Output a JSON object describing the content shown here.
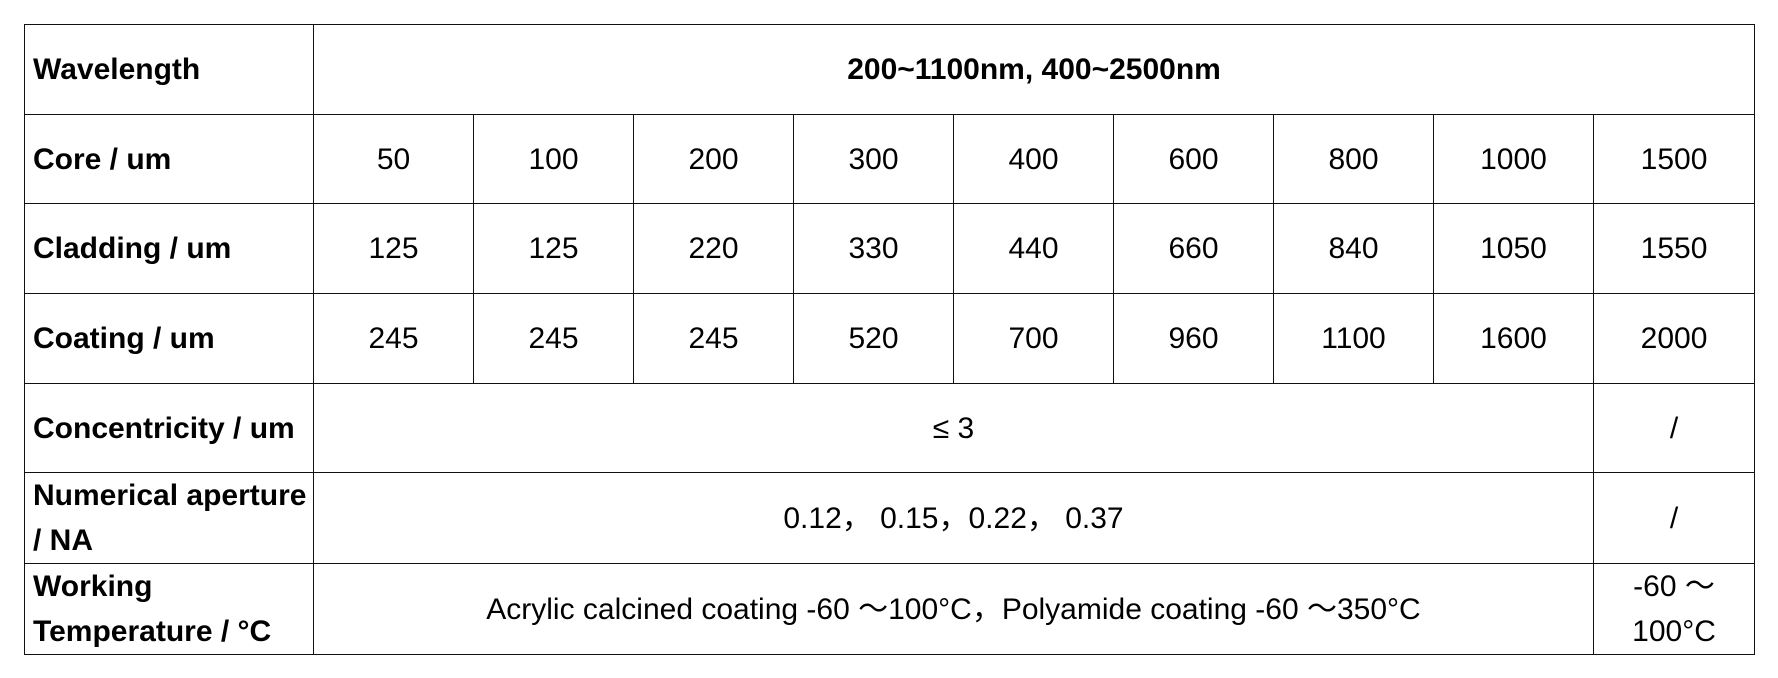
{
  "table": {
    "wavelength": {
      "label": "Wavelength",
      "value": "200~1100nm, 400~2500nm"
    },
    "core": {
      "label": "Core / um",
      "values": [
        "50",
        "100",
        "200",
        "300",
        "400",
        "600",
        "800",
        "1000",
        "1500"
      ]
    },
    "cladding": {
      "label": "Cladding / um",
      "values": [
        "125",
        "125",
        "220",
        "330",
        "440",
        "660",
        "840",
        "1050",
        "1550"
      ]
    },
    "coating": {
      "label": "Coating / um",
      "values": [
        "245",
        "245",
        "245",
        "520",
        "700",
        "960",
        "1100",
        "1600",
        "2000"
      ]
    },
    "concentricity": {
      "label": "Concentricity / um",
      "value": "≤ 3",
      "last": "/"
    },
    "numerical_aperture": {
      "label": "Numerical aperture / NA",
      "value": "0.12， 0.15，0.22， 0.37",
      "last": "/"
    },
    "working_temperature": {
      "label": "Working Temperature / °C",
      "value": "Acrylic calcined coating -60 ～100°C，Polyamide coating -60 ～350°C",
      "last": "-60 ～ 100°C"
    }
  }
}
